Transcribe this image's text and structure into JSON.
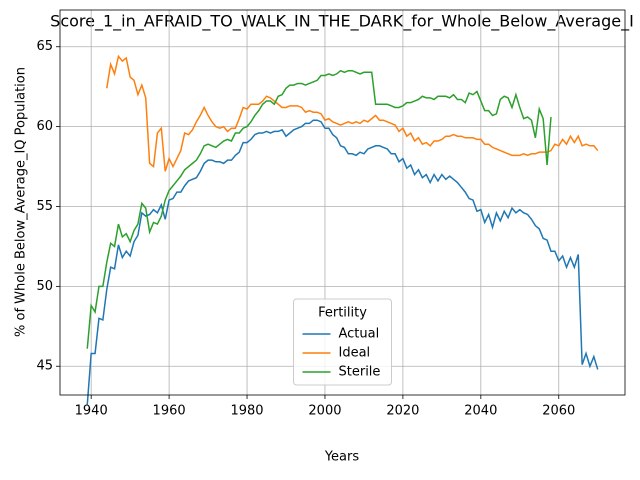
{
  "chart_data": {
    "type": "line",
    "title": "Score_1_in_AFRAID_TO_WALK_IN_THE_DARK_for_Whole_Below_Average_I",
    "xlabel": "Years",
    "ylabel": "% of Whole Below_Average_IQ Population",
    "legend_title": "Fertility",
    "legend": "lower center",
    "grid": true,
    "xlim": [
      1932,
      2077
    ],
    "ylim": [
      43.2,
      67.3
    ],
    "xticks": [
      1940,
      1960,
      1980,
      2000,
      2020,
      2040,
      2060
    ],
    "yticks": [
      45,
      50,
      55,
      60,
      65
    ],
    "x": [
      1939,
      1940,
      1941,
      1942,
      1943,
      1944,
      1945,
      1946,
      1947,
      1948,
      1949,
      1950,
      1951,
      1952,
      1953,
      1954,
      1955,
      1956,
      1957,
      1958,
      1959,
      1960,
      1961,
      1962,
      1963,
      1964,
      1965,
      1966,
      1967,
      1968,
      1969,
      1970,
      1971,
      1972,
      1973,
      1974,
      1975,
      1976,
      1977,
      1978,
      1979,
      1980,
      1981,
      1982,
      1983,
      1984,
      1985,
      1986,
      1987,
      1988,
      1989,
      1990,
      1991,
      1992,
      1993,
      1994,
      1995,
      1996,
      1997,
      1998,
      1999,
      2000,
      2001,
      2002,
      2003,
      2004,
      2005,
      2006,
      2007,
      2008,
      2009,
      2010,
      2011,
      2012,
      2013,
      2014,
      2015,
      2016,
      2017,
      2018,
      2019,
      2020,
      2021,
      2022,
      2023,
      2024,
      2025,
      2026,
      2027,
      2028,
      2029,
      2030,
      2031,
      2032,
      2033,
      2034,
      2035,
      2036,
      2037,
      2038,
      2039,
      2040,
      2041,
      2042,
      2043,
      2044,
      2045,
      2046,
      2047,
      2048,
      2049,
      2050,
      2051,
      2052,
      2053,
      2054,
      2055,
      2056,
      2057,
      2058,
      2059,
      2060,
      2061,
      2062,
      2063,
      2064,
      2065,
      2066,
      2067,
      2068,
      2069,
      2070
    ],
    "series": [
      {
        "name": "Actual",
        "color": "#1f77b4",
        "values": [
          42.6,
          45.8,
          45.8,
          48.0,
          47.9,
          49.8,
          51.2,
          51.1,
          52.6,
          51.8,
          52.2,
          51.9,
          52.8,
          53.2,
          54.6,
          54.4,
          54.5,
          54.8,
          54.6,
          55.1,
          54.2,
          55.4,
          55.5,
          55.9,
          55.9,
          56.3,
          56.6,
          56.7,
          56.8,
          57.2,
          57.7,
          57.9,
          57.9,
          57.8,
          57.8,
          57.7,
          57.9,
          57.9,
          58.2,
          58.4,
          59.0,
          59.0,
          59.2,
          59.5,
          59.6,
          59.6,
          59.7,
          59.6,
          59.7,
          59.7,
          59.8,
          59.4,
          59.6,
          59.8,
          59.9,
          60.0,
          60.2,
          60.2,
          60.4,
          60.4,
          60.3,
          59.9,
          59.9,
          59.5,
          59.3,
          58.8,
          58.7,
          58.3,
          58.3,
          58.2,
          58.4,
          58.3,
          58.6,
          58.7,
          58.8,
          58.8,
          58.7,
          58.6,
          58.3,
          58.3,
          57.8,
          58.0,
          57.4,
          57.6,
          57.0,
          57.3,
          56.8,
          57.0,
          56.5,
          57.0,
          56.6,
          57.0,
          56.7,
          56.9,
          56.7,
          56.5,
          56.2,
          55.9,
          55.5,
          55.4,
          54.7,
          54.8,
          54.0,
          54.5,
          53.7,
          54.6,
          54.1,
          54.7,
          54.3,
          54.9,
          54.6,
          54.8,
          54.6,
          54.5,
          54.2,
          53.8,
          53.6,
          53.0,
          52.9,
          52.2,
          52.2,
          51.6,
          51.9,
          51.2,
          51.8,
          51.2,
          52.0,
          45.1,
          45.8,
          45.0,
          45.6,
          44.8
        ]
      },
      {
        "name": "Ideal",
        "color": "#ff7f0e",
        "values": [
          null,
          null,
          null,
          null,
          null,
          62.4,
          63.9,
          63.3,
          64.4,
          64.1,
          64.3,
          63.1,
          62.9,
          62.0,
          62.6,
          61.8,
          57.7,
          57.5,
          59.6,
          59.9,
          57.2,
          58.0,
          57.5,
          58.0,
          58.5,
          59.6,
          59.5,
          59.8,
          60.3,
          60.7,
          61.2,
          60.7,
          60.3,
          60.0,
          59.9,
          60.0,
          59.7,
          59.9,
          59.9,
          60.5,
          61.2,
          61.1,
          61.4,
          61.4,
          61.4,
          61.6,
          61.9,
          61.8,
          61.6,
          61.4,
          61.2,
          61.2,
          61.3,
          61.3,
          61.3,
          61.2,
          60.9,
          61.0,
          60.9,
          60.9,
          60.8,
          60.4,
          60.5,
          60.3,
          60.2,
          60.1,
          60.2,
          60.3,
          60.2,
          60.3,
          60.2,
          60.4,
          60.3,
          60.5,
          60.7,
          60.4,
          60.4,
          60.3,
          60.2,
          60.1,
          59.7,
          59.9,
          59.4,
          59.6,
          59.1,
          59.3,
          58.9,
          59.0,
          58.8,
          59.1,
          59.1,
          59.2,
          59.4,
          59.4,
          59.5,
          59.4,
          59.4,
          59.3,
          59.3,
          59.3,
          59.2,
          59.2,
          58.9,
          58.9,
          58.7,
          58.6,
          58.5,
          58.4,
          58.3,
          58.2,
          58.2,
          58.2,
          58.3,
          58.2,
          58.3,
          58.3,
          58.4,
          58.4,
          58.4,
          58.5,
          58.9,
          58.8,
          59.2,
          58.9,
          59.4,
          59.0,
          59.4,
          58.8,
          58.9,
          58.8,
          58.8,
          58.5
        ]
      },
      {
        "name": "Sterile",
        "color": "#2ca02c",
        "values": [
          46.1,
          48.8,
          48.4,
          50.0,
          50.0,
          51.5,
          52.7,
          52.5,
          53.9,
          53.1,
          53.3,
          52.8,
          53.5,
          53.9,
          55.2,
          54.9,
          53.4,
          54.0,
          53.9,
          54.4,
          55.4,
          56.0,
          56.3,
          56.6,
          56.9,
          57.3,
          57.5,
          57.7,
          57.9,
          58.3,
          58.8,
          58.9,
          58.8,
          58.7,
          58.9,
          59.1,
          59.2,
          59.1,
          59.6,
          59.6,
          59.9,
          60.0,
          60.3,
          60.7,
          61.0,
          61.4,
          61.6,
          61.6,
          61.4,
          61.9,
          62.0,
          62.4,
          62.6,
          62.6,
          62.7,
          62.7,
          62.6,
          62.7,
          62.8,
          62.9,
          63.2,
          63.2,
          63.3,
          63.2,
          63.3,
          63.5,
          63.4,
          63.5,
          63.5,
          63.4,
          63.3,
          63.4,
          63.4,
          63.4,
          61.4,
          61.4,
          61.4,
          61.4,
          61.3,
          61.2,
          61.2,
          61.3,
          61.5,
          61.5,
          61.6,
          61.7,
          61.9,
          61.8,
          61.8,
          61.7,
          61.9,
          61.9,
          61.9,
          61.8,
          62.0,
          61.7,
          61.7,
          61.5,
          62.1,
          62.0,
          62.2,
          61.6,
          61.0,
          61.0,
          60.7,
          60.8,
          61.7,
          61.9,
          61.8,
          61.2,
          62.0,
          61.2,
          60.5,
          60.6,
          60.4,
          59.3,
          61.1,
          60.5,
          57.6,
          60.6,
          null,
          null,
          null,
          null,
          null,
          null,
          null,
          null,
          null,
          null,
          null,
          null
        ]
      }
    ]
  }
}
